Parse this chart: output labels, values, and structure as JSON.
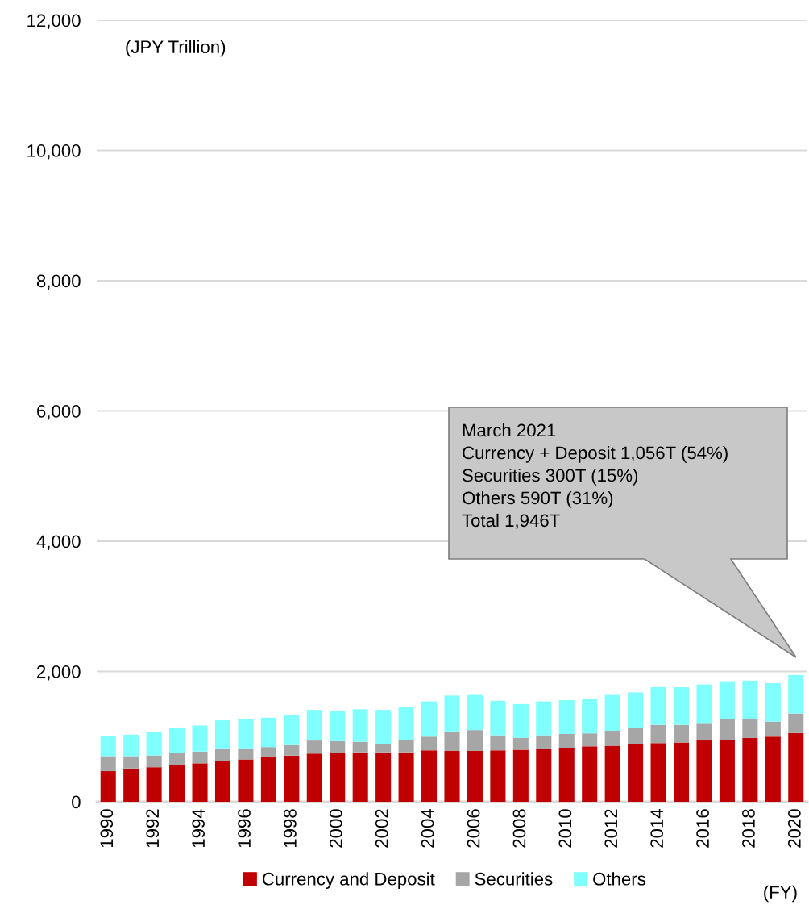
{
  "chart_data": {
    "type": "bar",
    "stacked": true,
    "ylabel": "(JPY Trillion)",
    "xlabel": "(FY)",
    "categories": [
      "1990",
      null,
      "1992",
      null,
      "1994",
      null,
      "1996",
      null,
      "1998",
      null,
      "2000",
      null,
      "2002",
      null,
      "2004",
      null,
      "2006",
      null,
      "2008",
      null,
      "2010",
      null,
      "2012",
      null,
      "2014",
      null,
      "2016",
      null,
      "2018",
      null,
      "2020"
    ],
    "series": [
      {
        "name": "Currency and Deposit",
        "color": "#c00000",
        "values": [
          470,
          510,
          530,
          560,
          590,
          620,
          650,
          690,
          710,
          740,
          750,
          760,
          760,
          760,
          790,
          780,
          780,
          790,
          800,
          810,
          830,
          850,
          860,
          880,
          900,
          910,
          940,
          950,
          980,
          1000,
          1056
        ]
      },
      {
        "name": "Securities",
        "color": "#a6a6a6",
        "values": [
          230,
          190,
          180,
          190,
          180,
          200,
          170,
          150,
          160,
          200,
          180,
          160,
          130,
          190,
          210,
          300,
          320,
          230,
          180,
          210,
          210,
          200,
          230,
          250,
          280,
          270,
          270,
          320,
          290,
          230,
          300
        ]
      },
      {
        "name": "Others",
        "color": "#80ffff",
        "values": [
          310,
          330,
          360,
          390,
          400,
          430,
          450,
          450,
          460,
          470,
          470,
          500,
          520,
          500,
          540,
          550,
          540,
          530,
          520,
          520,
          520,
          530,
          550,
          550,
          580,
          580,
          590,
          580,
          590,
          590,
          590
        ]
      }
    ],
    "ylim": [
      0,
      12000
    ],
    "yticks": [
      {
        "value": 0,
        "label": "0"
      },
      {
        "value": 2000,
        "label": "2,000"
      },
      {
        "value": 4000,
        "label": "4,000"
      },
      {
        "value": 6000,
        "label": "6,000"
      },
      {
        "value": 8000,
        "label": "8,000"
      },
      {
        "value": 10000,
        "label": "10,000"
      },
      {
        "value": 12000,
        "label": "12,000"
      }
    ],
    "grid": "y",
    "legend": "bottom",
    "annotations": [
      "March 2021\nCurrency + Deposit 1,056T (54%)\nSecurities 300T (15%)\nOthers 590T (31%)\nTotal 1,946T"
    ]
  }
}
